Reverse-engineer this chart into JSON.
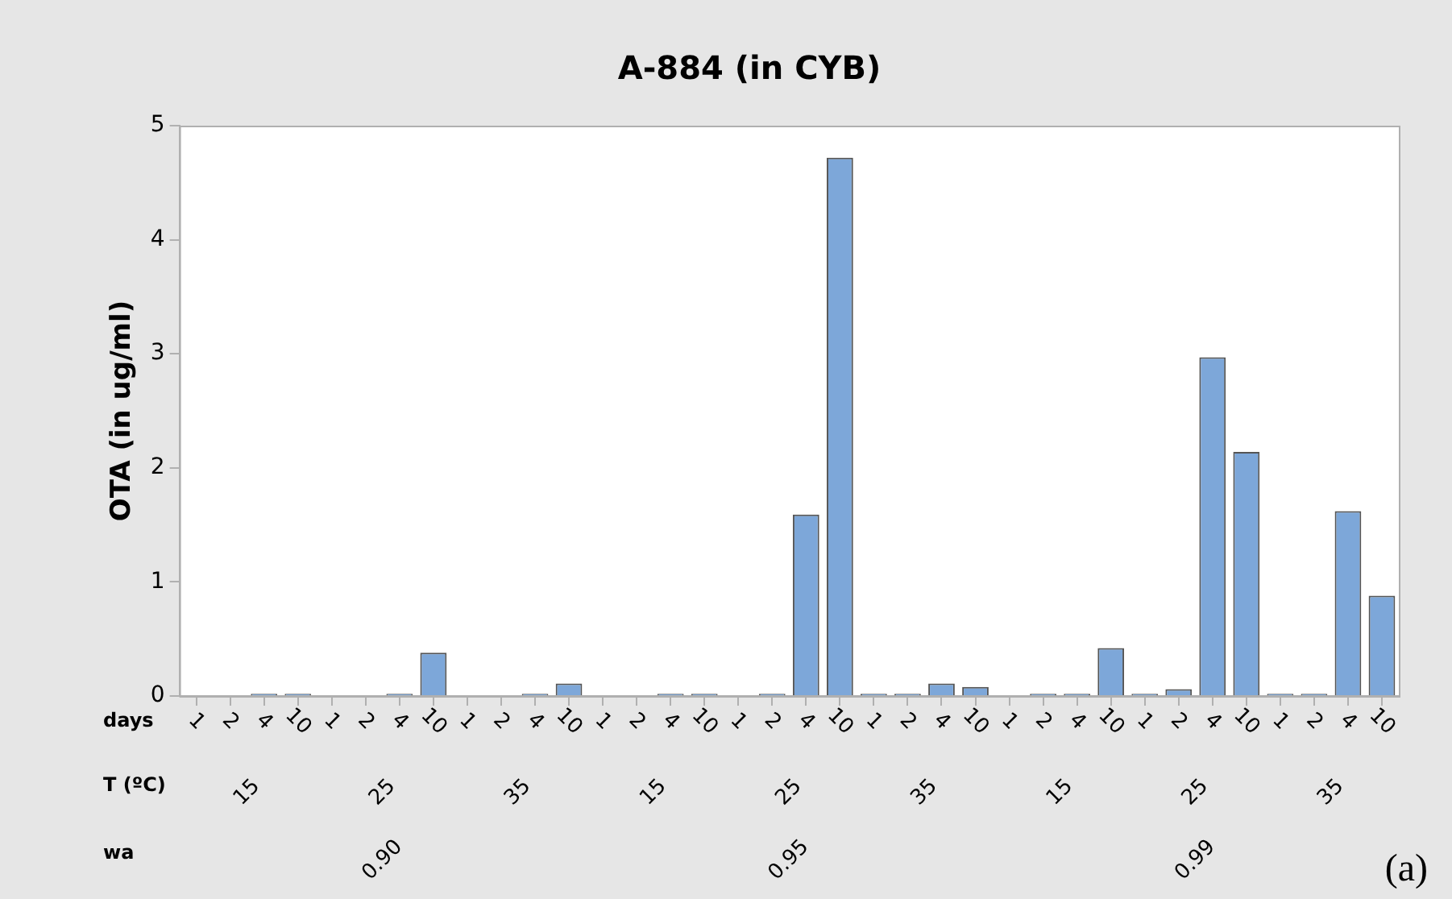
{
  "chart_data": {
    "type": "bar",
    "title": "A-884 (in CYB)",
    "ylabel": "OTA (in ug/ml)",
    "categories": [
      "1",
      "2",
      "4",
      "10",
      "1",
      "2",
      "4",
      "10",
      "1",
      "2",
      "4",
      "10",
      "1",
      "2",
      "4",
      "10",
      "1",
      "2",
      "4",
      "10",
      "1",
      "2",
      "4",
      "10",
      "1",
      "2",
      "4",
      "10",
      "1",
      "2",
      "4",
      "10",
      "1",
      "2",
      "4",
      "10"
    ],
    "values": [
      0,
      0,
      0.02,
      0.02,
      0,
      0,
      0.02,
      0.38,
      0,
      0,
      0.02,
      0.11,
      0,
      0,
      0.02,
      0.02,
      0,
      0.02,
      1.59,
      4.72,
      0.02,
      0.02,
      0.11,
      0.08,
      0,
      0.02,
      0.02,
      0.42,
      0.02,
      0.06,
      2.97,
      2.14,
      0.02,
      0.02,
      1.62,
      0.88
    ],
    "color": "#7da7d9",
    "ylim": [
      0,
      5
    ],
    "yticks": [
      0,
      1,
      2,
      3,
      4,
      5
    ],
    "annotations": [
      "days",
      "T (ºC)",
      "wa",
      "15",
      "25",
      "35",
      "15",
      "25",
      "35",
      "15",
      "25",
      "35",
      "0.90",
      "0.95",
      "0.99",
      "(a)"
    ]
  }
}
